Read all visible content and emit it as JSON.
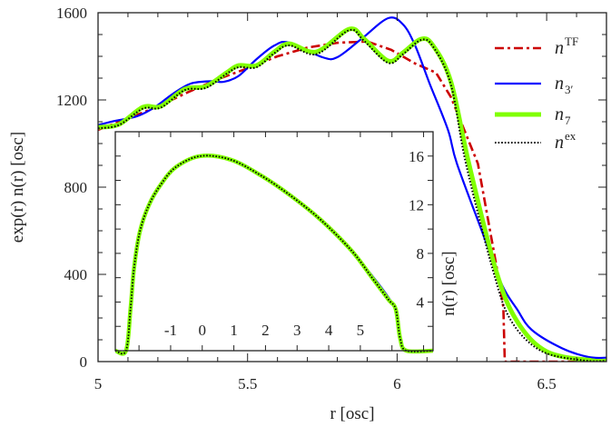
{
  "chart_data": [
    {
      "type": "line",
      "title": "",
      "xlabel": "r [osc]",
      "ylabel": "exp(r) n(r) [osc]",
      "xlim": [
        5,
        6.7
      ],
      "ylim": [
        0,
        1600
      ],
      "xticks": [
        "5",
        "5.5",
        "6",
        "6.5"
      ],
      "yticks": [
        "0",
        "400",
        "800",
        "1200",
        "1600"
      ],
      "grid": false,
      "legend_position": "top-right",
      "legend": [
        {
          "base": "n",
          "sup": "TF",
          "sub": "",
          "color": "#cc0000",
          "style": "dash-dot"
        },
        {
          "base": "n",
          "sup": "",
          "sub": "3′",
          "color": "#0000ff",
          "style": "solid"
        },
        {
          "base": "n",
          "sup": "",
          "sub": "7",
          "color": "#80ff00",
          "style": "thick-solid"
        },
        {
          "base": "n",
          "sup": "ex",
          "sub": "",
          "color": "#000000",
          "style": "dotted"
        }
      ],
      "series": [
        {
          "name": "n^TF",
          "x": [
            5.0,
            5.1,
            5.2,
            5.3,
            5.4,
            5.5,
            5.6,
            5.7,
            5.8,
            5.9,
            5.98,
            6.06,
            6.13,
            6.18,
            6.27,
            6.34,
            6.355,
            6.36,
            6.7
          ],
          "y": [
            1063,
            1115,
            1170,
            1235,
            1295,
            1345,
            1400,
            1440,
            1462,
            1468,
            1430,
            1367,
            1325,
            1213,
            908,
            379,
            250,
            0,
            0
          ]
        },
        {
          "name": "n_3'",
          "x": [
            5.0,
            5.06,
            5.13,
            5.19,
            5.25,
            5.31,
            5.38,
            5.42,
            5.47,
            5.53,
            5.59,
            5.64,
            5.75,
            5.8,
            5.88,
            5.97,
            6.02,
            6.06,
            6.11,
            6.17,
            6.2,
            6.29,
            6.35,
            6.4,
            6.45,
            6.55,
            6.64,
            6.7
          ],
          "y": [
            1085,
            1105,
            1125,
            1167,
            1228,
            1275,
            1286,
            1283,
            1310,
            1387,
            1450,
            1463,
            1396,
            1396,
            1479,
            1575,
            1546,
            1450,
            1271,
            1063,
            908,
            575,
            354,
            242,
            146,
            62,
            21,
            18
          ]
        },
        {
          "name": "n_7",
          "x": [
            5.0,
            5.07,
            5.15,
            5.21,
            5.29,
            5.36,
            5.43,
            5.47,
            5.53,
            5.59,
            5.64,
            5.73,
            5.84,
            5.89,
            5.97,
            6.02,
            6.08,
            6.12,
            6.18,
            6.24,
            6.33,
            6.4,
            6.5,
            6.65,
            6.7
          ],
          "y": [
            1075,
            1088,
            1167,
            1171,
            1250,
            1262,
            1325,
            1358,
            1358,
            1421,
            1458,
            1421,
            1525,
            1479,
            1379,
            1417,
            1479,
            1450,
            1283,
            908,
            421,
            187,
            46,
            5,
            3
          ]
        },
        {
          "name": "n^ex",
          "x": [
            5.0,
            5.07,
            5.15,
            5.21,
            5.29,
            5.36,
            5.43,
            5.47,
            5.53,
            5.59,
            5.64,
            5.73,
            5.84,
            5.89,
            5.97,
            6.02,
            6.08,
            6.12,
            6.18,
            6.23,
            6.32,
            6.38,
            6.48,
            6.62,
            6.7
          ],
          "y": [
            1070,
            1085,
            1160,
            1165,
            1245,
            1255,
            1320,
            1350,
            1350,
            1415,
            1450,
            1410,
            1520,
            1470,
            1370,
            1410,
            1475,
            1445,
            1270,
            908,
            421,
            190,
            50,
            6,
            3
          ]
        }
      ]
    },
    {
      "type": "line",
      "title": "",
      "xlabel": "",
      "ylabel": "n(r) [osc]",
      "xlim": [
        -2.75,
        7.3
      ],
      "ylim": [
        0,
        18
      ],
      "xticks": [
        "-1",
        "0",
        "1",
        "2",
        "3",
        "4",
        "5"
      ],
      "yticks": [
        "4",
        "8",
        "12",
        "16"
      ],
      "grid": false,
      "series": [
        {
          "name": "n^TF",
          "x": [
            -2.75,
            -2.41,
            -2.27,
            -2.16,
            -1.98,
            -1.7,
            -1.3,
            -0.83,
            -0.06,
            0.9,
            1.86,
            2.82,
            3.77,
            4.73,
            5.4,
            5.89,
            6.12,
            6.26,
            6.46,
            7.3
          ],
          "y": [
            0,
            0,
            3.4,
            6.7,
            9.7,
            11.9,
            13.7,
            15.1,
            16.0,
            15.7,
            14.4,
            12.7,
            10.7,
            8.2,
            5.9,
            4.2,
            3.4,
            1.0,
            0,
            0
          ]
        },
        {
          "name": "n_3'",
          "x": [
            -2.75,
            -2.41,
            -2.27,
            -2.16,
            -1.98,
            -1.7,
            -1.3,
            -0.83,
            -0.06,
            0.9,
            1.86,
            2.82,
            3.77,
            4.73,
            5.4,
            5.89,
            6.12,
            6.26,
            6.46,
            7.3
          ],
          "y": [
            0,
            0,
            3.4,
            6.7,
            9.7,
            11.9,
            13.7,
            15.1,
            16.0,
            15.7,
            14.4,
            12.7,
            10.7,
            8.2,
            6.1,
            4.4,
            3.3,
            1.0,
            0,
            0
          ]
        },
        {
          "name": "n_7",
          "x": [
            -2.75,
            -2.41,
            -2.27,
            -2.16,
            -1.98,
            -1.7,
            -1.3,
            -0.83,
            -0.06,
            0.9,
            1.86,
            2.82,
            3.77,
            4.73,
            5.4,
            5.89,
            6.12,
            6.26,
            6.46,
            7.3
          ],
          "y": [
            0,
            0,
            3.4,
            6.7,
            9.7,
            11.9,
            13.7,
            15.1,
            16.0,
            15.7,
            14.4,
            12.7,
            10.7,
            8.2,
            5.9,
            4.2,
            3.4,
            1.0,
            0,
            0
          ]
        },
        {
          "name": "n^ex",
          "x": [
            -2.75,
            -2.41,
            -2.27,
            -2.16,
            -1.98,
            -1.7,
            -1.3,
            -0.83,
            -0.06,
            0.9,
            1.86,
            2.82,
            3.77,
            4.73,
            5.4,
            5.89,
            6.12,
            6.26,
            6.46,
            7.3
          ],
          "y": [
            0,
            0,
            3.4,
            6.7,
            9.7,
            11.9,
            13.7,
            15.1,
            16.0,
            15.7,
            14.4,
            12.7,
            10.7,
            8.2,
            5.9,
            4.2,
            3.4,
            1.0,
            0,
            0
          ]
        }
      ]
    }
  ]
}
